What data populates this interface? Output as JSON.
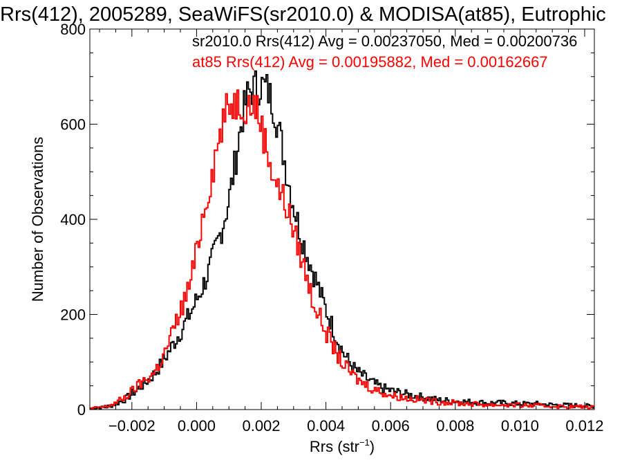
{
  "chart_data": {
    "type": "line",
    "title": "Rrs(412), 2005289, SeaWiFS(sr2010.0) & MODISA(at85), Eutrophic",
    "xlabel_base": "Rrs (str",
    "xlabel_sup": "−1",
    "xlabel_close": ")",
    "ylabel": "Number of Observations",
    "xlim": [
      -0.0033,
      0.0123
    ],
    "ylim": [
      0,
      800
    ],
    "x_ticks": [
      -0.002,
      0.0,
      0.002,
      0.004,
      0.006,
      0.008,
      0.01,
      0.012
    ],
    "x_tick_labels": [
      "−0.002",
      "0.000",
      "0.002",
      "0.004",
      "0.006",
      "0.008",
      "0.010",
      "0.012"
    ],
    "y_ticks": [
      0,
      200,
      400,
      600,
      800
    ],
    "y_tick_labels": [
      "0",
      "200",
      "400",
      "600",
      "800"
    ],
    "grid": false,
    "legend_placement": "top-right",
    "histogram_bin_width": 5e-05,
    "series": [
      {
        "name": "sr2010.0",
        "legend_text": "sr2010.0 Rrs(412) Avg = 0.00237050, Med = 0.00200736",
        "color": "#000000",
        "points": [
          [
            -0.0033,
            2
          ],
          [
            -0.0028,
            5
          ],
          [
            -0.0025,
            12
          ],
          [
            -0.0022,
            22
          ],
          [
            -0.0019,
            38
          ],
          [
            -0.0016,
            55
          ],
          [
            -0.0013,
            75
          ],
          [
            -0.001,
            105
          ],
          [
            -0.0007,
            140
          ],
          [
            -0.0004,
            175
          ],
          [
            -0.0001,
            215
          ],
          [
            0.0002,
            260
          ],
          [
            0.0004,
            295
          ],
          [
            0.0006,
            340
          ],
          [
            0.0008,
            385
          ],
          [
            0.001,
            440
          ],
          [
            0.0012,
            520
          ],
          [
            0.0014,
            610
          ],
          [
            0.0016,
            665
          ],
          [
            0.0018,
            678
          ],
          [
            0.002,
            682
          ],
          [
            0.0022,
            672
          ],
          [
            0.0024,
            635
          ],
          [
            0.0026,
            570
          ],
          [
            0.0028,
            495
          ],
          [
            0.003,
            430
          ],
          [
            0.0032,
            375
          ],
          [
            0.0034,
            330
          ],
          [
            0.0036,
            290
          ],
          [
            0.0038,
            250
          ],
          [
            0.004,
            210
          ],
          [
            0.0042,
            175
          ],
          [
            0.0044,
            140
          ],
          [
            0.0046,
            112
          ],
          [
            0.0048,
            92
          ],
          [
            0.005,
            78
          ],
          [
            0.0052,
            68
          ],
          [
            0.0054,
            58
          ],
          [
            0.0056,
            50
          ],
          [
            0.0058,
            44
          ],
          [
            0.006,
            40
          ],
          [
            0.0065,
            32
          ],
          [
            0.007,
            26
          ],
          [
            0.0075,
            20
          ],
          [
            0.008,
            18
          ],
          [
            0.0085,
            16
          ],
          [
            0.009,
            14
          ],
          [
            0.0095,
            14
          ],
          [
            0.01,
            12
          ],
          [
            0.0105,
            12
          ],
          [
            0.011,
            10
          ],
          [
            0.0115,
            9
          ],
          [
            0.012,
            8
          ],
          [
            0.0123,
            7
          ]
        ]
      },
      {
        "name": "at85",
        "legend_text": "at85 Rrs(412) Avg = 0.00195882, Med = 0.00162667",
        "color": "#ff0000",
        "points": [
          [
            -0.0033,
            2
          ],
          [
            -0.0028,
            6
          ],
          [
            -0.0025,
            14
          ],
          [
            -0.0022,
            26
          ],
          [
            -0.0019,
            45
          ],
          [
            -0.0016,
            62
          ],
          [
            -0.0013,
            78
          ],
          [
            -0.001,
            115
          ],
          [
            -0.0007,
            170
          ],
          [
            -0.0004,
            225
          ],
          [
            -0.0002,
            265
          ],
          [
            0.0,
            330
          ],
          [
            0.0002,
            410
          ],
          [
            0.0004,
            470
          ],
          [
            0.0006,
            540
          ],
          [
            0.0008,
            600
          ],
          [
            0.001,
            640
          ],
          [
            0.0012,
            648
          ],
          [
            0.0014,
            645
          ],
          [
            0.0016,
            640
          ],
          [
            0.0018,
            645
          ],
          [
            0.002,
            600
          ],
          [
            0.0022,
            540
          ],
          [
            0.0024,
            490
          ],
          [
            0.0026,
            455
          ],
          [
            0.0028,
            425
          ],
          [
            0.003,
            375
          ],
          [
            0.0032,
            330
          ],
          [
            0.0034,
            280
          ],
          [
            0.0036,
            230
          ],
          [
            0.0038,
            195
          ],
          [
            0.004,
            165
          ],
          [
            0.0042,
            135
          ],
          [
            0.0044,
            110
          ],
          [
            0.0046,
            90
          ],
          [
            0.0048,
            75
          ],
          [
            0.005,
            62
          ],
          [
            0.0052,
            54
          ],
          [
            0.0054,
            46
          ],
          [
            0.0056,
            40
          ],
          [
            0.0058,
            35
          ],
          [
            0.006,
            30
          ],
          [
            0.0065,
            24
          ],
          [
            0.007,
            20
          ],
          [
            0.0075,
            16
          ],
          [
            0.008,
            14
          ],
          [
            0.0085,
            12
          ],
          [
            0.009,
            10
          ],
          [
            0.0095,
            10
          ],
          [
            0.01,
            9
          ],
          [
            0.0105,
            8
          ],
          [
            0.011,
            7
          ],
          [
            0.0115,
            6
          ],
          [
            0.012,
            6
          ],
          [
            0.0123,
            5
          ]
        ]
      }
    ]
  }
}
